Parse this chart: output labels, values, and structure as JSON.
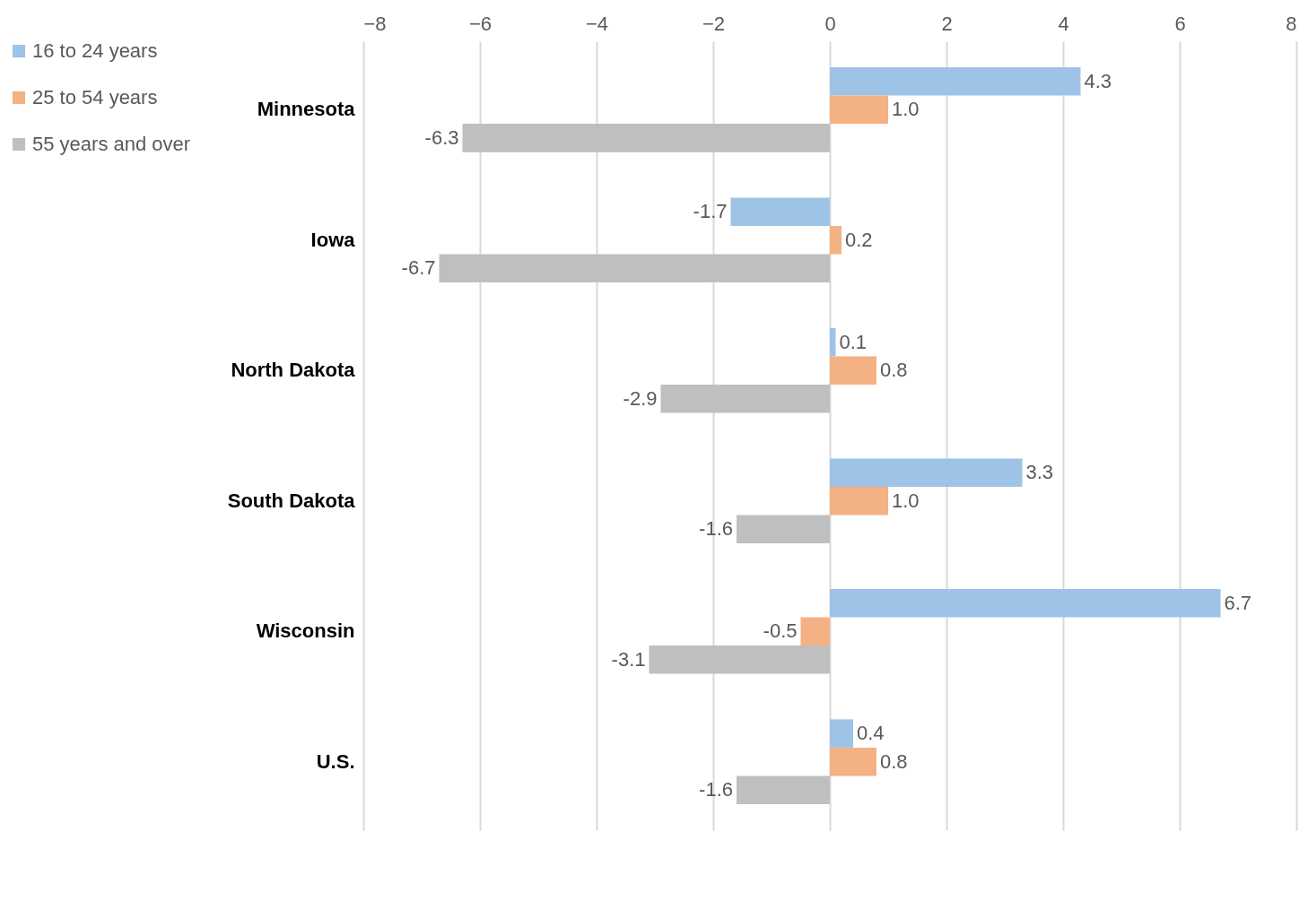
{
  "chart_data": {
    "type": "bar",
    "orientation": "horizontal",
    "categories": [
      "Minnesota",
      "Iowa",
      "North Dakota",
      "South Dakota",
      "Wisconsin",
      "U.S."
    ],
    "series": [
      {
        "name": "16 to 24 years",
        "color": "#9dc3e6",
        "values": [
          4.3,
          -1.7,
          0.1,
          3.3,
          6.7,
          0.4
        ],
        "value_labels": [
          "4.3",
          "-1.7",
          "0.1",
          "3.3",
          "6.7",
          "0.4"
        ]
      },
      {
        "name": "25 to 54 years",
        "color": "#f4b183",
        "values": [
          1.0,
          0.2,
          0.8,
          1.0,
          -0.5,
          0.8
        ],
        "value_labels": [
          "1.0",
          "0.2",
          "0.8",
          "1.0",
          "-0.5",
          "0.8"
        ]
      },
      {
        "name": "55 years and over",
        "color": "#bfbfbf",
        "values": [
          -6.3,
          -6.7,
          -2.9,
          -1.6,
          -3.1,
          -1.6
        ],
        "value_labels": [
          "-6.3",
          "-6.7",
          "-2.9",
          "-1.6",
          "-3.1",
          "-1.6"
        ]
      }
    ],
    "xlim": [
      -8,
      8
    ],
    "xticks": [
      -8,
      -6,
      -4,
      -2,
      0,
      2,
      4,
      6,
      8
    ],
    "grid": "x",
    "legend": "left"
  }
}
